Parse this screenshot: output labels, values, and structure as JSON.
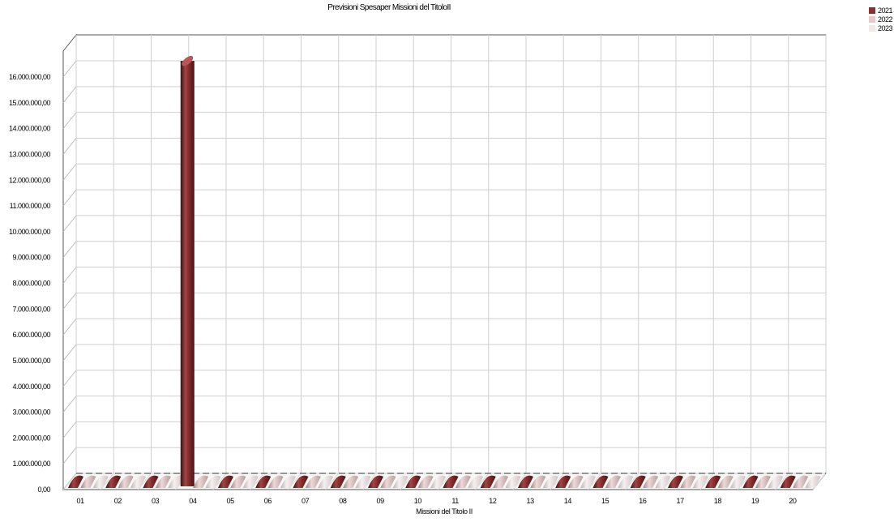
{
  "chart_data": {
    "type": "bar",
    "title": "Previsioni Spesaper Missioni del TitoloII",
    "xlabel": "Missioni del Titolo II",
    "ylabel": "",
    "categories": [
      "01",
      "02",
      "03",
      "04",
      "05",
      "06",
      "07",
      "08",
      "09",
      "10",
      "11",
      "12",
      "13",
      "14",
      "15",
      "16",
      "17",
      "18",
      "19",
      "20"
    ],
    "series": [
      {
        "name": "2021",
        "color": "#8b2e2e",
        "values": [
          0,
          0,
          0,
          16500000,
          0,
          0,
          0,
          0,
          0,
          0,
          0,
          0,
          0,
          0,
          0,
          0,
          0,
          0,
          0,
          0
        ]
      },
      {
        "name": "2022",
        "color": "#e8c8c8",
        "values": [
          0,
          0,
          0,
          0,
          0,
          0,
          0,
          0,
          0,
          0,
          0,
          0,
          0,
          0,
          0,
          0,
          0,
          0,
          0,
          0
        ]
      },
      {
        "name": "2023",
        "color": "#f1e8e8",
        "values": [
          0,
          0,
          0,
          0,
          0,
          0,
          0,
          0,
          0,
          0,
          0,
          0,
          0,
          0,
          0,
          0,
          0,
          0,
          0,
          0
        ]
      }
    ],
    "ylim": [
      0,
      16500000
    ],
    "yticks": [
      "0,00",
      "1.000.000,00",
      "2.000.000,00",
      "3.000.000,00",
      "4.000.000,00",
      "5.000.000,00",
      "6.000.000,00",
      "7.000.000,00",
      "8.000.000,00",
      "9.000.000,00",
      "10.000.000,00",
      "11.000.000,00",
      "12.000.000,00",
      "13.000.000,00",
      "14.000.000,00",
      "15.000.000,00",
      "16.000.000,00"
    ],
    "grid": true,
    "legend_position": "top-right"
  }
}
